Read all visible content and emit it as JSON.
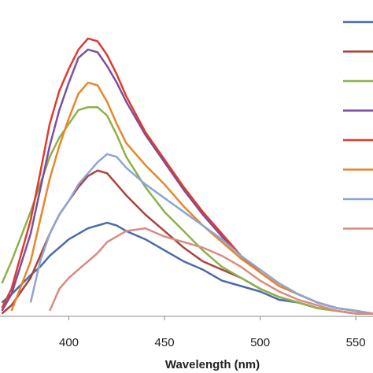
{
  "chart_data": {
    "type": "line",
    "x_label": "Wavelength (nm)",
    "x": [
      365,
      370,
      380,
      385,
      390,
      395,
      400,
      405,
      410,
      415,
      420,
      425,
      430,
      440,
      450,
      460,
      470,
      480,
      490,
      500,
      510,
      520,
      530,
      540,
      550,
      559
    ],
    "xlim": [
      364,
      559
    ],
    "xticks": [
      400,
      450,
      500,
      550
    ],
    "ylim": [
      0,
      115
    ],
    "legend": "upper right",
    "series": [
      {
        "color": "#4a6aa8",
        "values": [
          5,
          8,
          15,
          18,
          22,
          25,
          28,
          30,
          32,
          33,
          34,
          33,
          31,
          28,
          24,
          20,
          17,
          13,
          11,
          9,
          6,
          5,
          3,
          2,
          1,
          1
        ]
      },
      {
        "color": "#a9433b",
        "values": [
          1,
          4,
          14,
          22,
          30,
          37,
          42,
          47,
          51,
          53,
          52,
          48,
          44,
          37,
          31,
          25,
          20,
          17,
          14,
          10,
          7,
          5,
          3,
          2,
          1,
          1
        ]
      },
      {
        "color": "#8db14a",
        "values": [
          12,
          20,
          38,
          48,
          58,
          65,
          70,
          75,
          76,
          76,
          73,
          66,
          58,
          47,
          38,
          31,
          24,
          18,
          14,
          10,
          7,
          5,
          3,
          2,
          1,
          1
        ]
      },
      {
        "color": "#7b4fa0",
        "values": [
          2,
          8,
          30,
          46,
          62,
          75,
          85,
          94,
          97,
          96,
          91,
          85,
          78,
          66,
          56,
          46,
          37,
          29,
          22,
          16,
          11,
          8,
          5,
          3,
          2,
          1
        ]
      },
      {
        "color": "#e03a2f",
        "values": [
          3,
          10,
          35,
          52,
          70,
          82,
          90,
          97,
          101,
          100,
          95,
          88,
          80,
          67,
          57,
          47,
          38,
          30,
          22,
          16,
          11,
          8,
          5,
          3,
          2,
          1
        ]
      },
      {
        "color": "#e8862a",
        "values": [
          null,
          2,
          20,
          35,
          50,
          62,
          72,
          81,
          85,
          84,
          78,
          70,
          63,
          55,
          48,
          40,
          33,
          27,
          21,
          16,
          11,
          8,
          5,
          3,
          2,
          1
        ]
      },
      {
        "color": "#8ea4d4",
        "values": [
          null,
          null,
          5,
          20,
          30,
          37,
          42,
          48,
          52,
          56,
          59,
          58,
          54,
          48,
          43,
          38,
          33,
          28,
          22,
          17,
          12,
          8,
          5,
          3,
          2,
          1
        ]
      },
      {
        "color": "#d98b82",
        "values": [
          null,
          null,
          null,
          null,
          2,
          10,
          14,
          17,
          20,
          23,
          27,
          29,
          31,
          32,
          29,
          27,
          25,
          22,
          18,
          13,
          9,
          6,
          4,
          2,
          1,
          1
        ]
      }
    ]
  }
}
